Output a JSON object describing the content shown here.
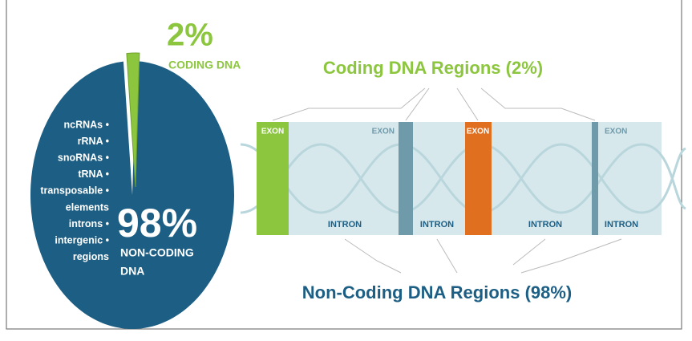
{
  "pie": {
    "coding": {
      "value": 2,
      "label": "2%",
      "name": "CODING DNA",
      "color": "#8cc63f"
    },
    "noncoding": {
      "value": 98,
      "label": "98%",
      "name_lines": [
        "NON-CODING",
        "DNA"
      ],
      "color": "#1d5f84",
      "items": [
        "ncRNAs •",
        "rRNA •",
        "snoRNAs •",
        "tRNA •",
        "transposable •",
        "elements",
        "introns •",
        "intergenic •",
        "regions"
      ]
    }
  },
  "regions": {
    "coding_title": "Coding DNA Regions (2%)",
    "noncoding_title": "Non-Coding DNA Regions (98%)",
    "segments": [
      {
        "label": "EXON",
        "color": "#8cc63f"
      },
      {
        "label": "INTRON"
      },
      {
        "label": "EXON",
        "color": "#6f9aaa"
      },
      {
        "label": "INTRON"
      },
      {
        "label": "EXON",
        "color": "#e07020"
      },
      {
        "label": "INTRON"
      },
      {
        "label": "EXON",
        "color": "#6f9aaa"
      },
      {
        "label": "INTRON"
      }
    ]
  }
}
